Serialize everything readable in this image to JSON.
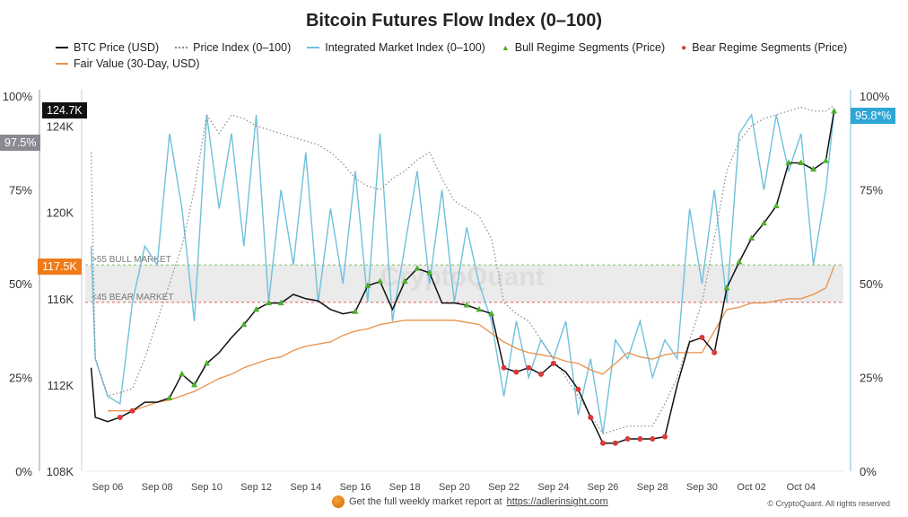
{
  "chart_data": {
    "type": "line",
    "title": "Bitcoin Futures Flow Index (0–100)",
    "legend": {
      "placement": "top",
      "items": [
        "BTC Price (USD)",
        "Price Index (0–100)",
        "Integrated Market Index (0–100)",
        "Bull Regime Segments (Price)",
        "Bear Regime Segments (Price)",
        "Fair Value (30-Day, USD)"
      ]
    },
    "colors": {
      "price": "#111111",
      "price_index": "#888888",
      "integrated": "#6fc0dc",
      "bull": "#4caf2a",
      "bear": "#d83a3a",
      "fair": "#e8914a",
      "band": "#ebebeb",
      "bull_line": "#7cc46a",
      "bear_line": "#e06060"
    },
    "x_ticks": [
      "Sep 06",
      "Sep 08",
      "Sep 10",
      "Sep 12",
      "Sep 14",
      "Sep 16",
      "Sep 18",
      "Sep 20",
      "Sep 22",
      "Sep 24",
      "Sep 26",
      "Sep 28",
      "Sep 30",
      "Oct 02",
      "Oct 04"
    ],
    "left_pct_ticks": [
      "0%",
      "25%",
      "50%",
      "75%",
      "100%"
    ],
    "price_ticks": [
      "108K",
      "112K",
      "116K",
      "120K",
      "124K"
    ],
    "right_pct_ticks": [
      "0%",
      "25%",
      "50%",
      "75%",
      "100%"
    ],
    "price_ylim_k": [
      108,
      125.4
    ],
    "pct_ylim": [
      0,
      100
    ],
    "grid": false,
    "x": [
      "09-05T08",
      "09-05T12",
      "09-06T00",
      "09-06T12",
      "09-07T00",
      "09-07T12",
      "09-08T00",
      "09-08T12",
      "09-09T00",
      "09-09T12",
      "09-10T00",
      "09-10T12",
      "09-11T00",
      "09-11T12",
      "09-12T00",
      "09-12T12",
      "09-13T00",
      "09-13T12",
      "09-14T00",
      "09-14T12",
      "09-15T00",
      "09-15T12",
      "09-16T00",
      "09-16T12",
      "09-17T00",
      "09-17T12",
      "09-18T00",
      "09-18T12",
      "09-19T00",
      "09-19T12",
      "09-20T00",
      "09-20T12",
      "09-21T00",
      "09-21T12",
      "09-22T00",
      "09-22T12",
      "09-23T00",
      "09-23T12",
      "09-24T00",
      "09-24T12",
      "09-25T00",
      "09-25T12",
      "09-26T00",
      "09-26T12",
      "09-27T00",
      "09-27T12",
      "09-28T00",
      "09-28T12",
      "09-29T00",
      "09-29T12",
      "09-30T00",
      "09-30T12",
      "10-01T00",
      "10-01T12",
      "10-02T00",
      "10-02T12",
      "10-03T00",
      "10-03T12",
      "10-04T00",
      "10-04T12",
      "10-05T00",
      "10-05T08"
    ],
    "series": [
      {
        "name": "BTC Price (USD)",
        "unit": "K USD",
        "values": [
          112.8,
          110.5,
          110.3,
          110.5,
          110.8,
          111.2,
          111.2,
          111.4,
          112.5,
          112.0,
          113.0,
          113.5,
          114.2,
          114.8,
          115.5,
          115.8,
          115.8,
          116.2,
          116.0,
          115.9,
          115.5,
          115.3,
          115.4,
          116.6,
          116.8,
          115.5,
          116.8,
          117.4,
          117.2,
          115.8,
          115.8,
          115.7,
          115.5,
          115.3,
          112.8,
          112.6,
          112.8,
          112.5,
          113.0,
          112.6,
          111.8,
          110.5,
          109.3,
          109.3,
          109.5,
          109.5,
          109.5,
          109.6,
          112.0,
          114.0,
          114.2,
          113.5,
          116.5,
          117.7,
          118.8,
          119.5,
          120.3,
          122.3,
          122.3,
          122.0,
          122.4,
          124.7
        ]
      },
      {
        "name": "Price Index (0–100)",
        "unit": "%",
        "values": [
          85,
          30,
          20,
          21,
          22,
          30,
          40,
          50,
          60,
          75,
          95,
          90,
          95,
          94,
          92,
          91,
          90,
          89,
          88,
          87,
          85,
          82,
          78,
          76,
          75,
          78,
          80,
          83,
          85,
          78,
          72,
          70,
          68,
          62,
          45,
          42,
          40,
          35,
          30,
          25,
          20,
          15,
          10,
          11,
          12,
          12,
          12,
          18,
          25,
          35,
          45,
          62,
          80,
          88,
          92,
          94,
          95,
          96,
          97,
          96,
          96,
          97.5
        ]
      },
      {
        "name": "Integrated Market Index (0–100)",
        "unit": "%",
        "values": [
          60,
          30,
          20,
          18,
          45,
          60,
          55,
          90,
          70,
          40,
          95,
          70,
          90,
          60,
          95,
          45,
          75,
          55,
          85,
          45,
          70,
          50,
          80,
          45,
          90,
          40,
          60,
          80,
          50,
          75,
          45,
          65,
          50,
          40,
          20,
          40,
          25,
          35,
          30,
          40,
          15,
          30,
          10,
          35,
          30,
          40,
          25,
          35,
          30,
          70,
          50,
          75,
          45,
          90,
          95,
          75,
          95,
          80,
          90,
          55,
          75,
          95.8
        ]
      },
      {
        "name": "Fair Value (30-Day, USD)",
        "unit": "K USD",
        "values": [
          null,
          null,
          110.8,
          110.8,
          110.8,
          111.0,
          111.2,
          111.3,
          111.5,
          111.7,
          112.0,
          112.3,
          112.5,
          112.8,
          113.0,
          113.2,
          113.3,
          113.6,
          113.8,
          113.9,
          114.0,
          114.3,
          114.5,
          114.6,
          114.8,
          114.9,
          115.0,
          115.0,
          115.0,
          115.0,
          115.0,
          114.9,
          114.8,
          114.4,
          114.0,
          113.7,
          113.5,
          113.4,
          113.3,
          113.1,
          113.0,
          112.7,
          112.5,
          113.0,
          113.5,
          113.3,
          113.2,
          113.4,
          113.5,
          113.5,
          113.5,
          114.5,
          115.5,
          115.6,
          115.8,
          115.8,
          115.9,
          116.0,
          116.0,
          116.2,
          116.5,
          117.5
        ]
      }
    ],
    "bull_ranges": [
      [
        "09-08T12",
        "09-10T00"
      ],
      [
        "09-11T12",
        "09-13T00"
      ],
      [
        "09-16T00",
        "09-17T00"
      ],
      [
        "09-18T00",
        "09-19T00"
      ],
      [
        "09-20T12",
        "09-21T12"
      ],
      [
        "10-01T00",
        "10-05T08"
      ]
    ],
    "bear_ranges": [
      [
        "09-06T12",
        "09-07T00"
      ],
      [
        "09-22T00",
        "09-24T00"
      ],
      [
        "09-25T00",
        "09-28T12"
      ],
      [
        "09-30T00",
        "09-30T12"
      ]
    ],
    "bands": {
      "bull_threshold": 55,
      "bear_threshold": 45,
      "bull_label": ">55 BULL MARKET",
      "bear_label": "<45 BEAR MARKET"
    },
    "last_value_tags": {
      "price_index": "97.5%",
      "price": "124.7K",
      "fair_value": "117.5K",
      "integrated": "95.8*%"
    },
    "watermark": "CryptoQuant"
  },
  "footer": {
    "text": "Get the full weekly market report at",
    "link": "https://adlerinsight.com",
    "copyright": "© CryptoQuant. All rights reserved"
  }
}
